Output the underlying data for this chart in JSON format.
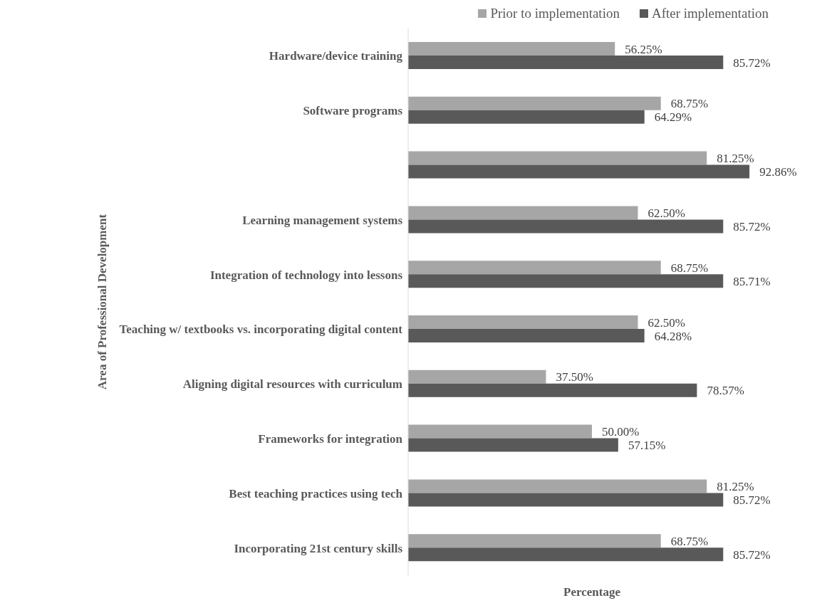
{
  "chart_data": {
    "type": "bar",
    "orientation": "horizontal",
    "xlabel": "Percentage",
    "ylabel": "Area of Professional Development",
    "categories": [
      "Hardware/device training",
      "Software programs",
      null,
      "Learning management systems",
      "Integration of technology into lessons",
      "Teaching w/ textbooks vs. incorporating digital content",
      "Aligning digital resources with curriculum",
      "Frameworks for integration",
      "Best teaching practices using tech",
      "Incorporating 21st century skills"
    ],
    "series": [
      {
        "name": "Prior to implementation",
        "color": "#a6a6a6",
        "values": [
          56.25,
          68.75,
          81.25,
          62.5,
          68.75,
          62.5,
          37.5,
          50,
          81.25,
          68.75
        ],
        "value_labels": [
          "56.25%",
          "68.75%",
          "81.25%",
          "62.50%",
          "68.75%",
          "62.50%",
          "37.50%",
          "50.00%",
          "81.25%",
          "68.75%"
        ]
      },
      {
        "name": "After implementation",
        "color": "#595959",
        "values": [
          85.72,
          64.29,
          92.86,
          85.72,
          85.71,
          64.28,
          78.57,
          57.15,
          85.72,
          85.72
        ],
        "value_labels": [
          "85.72%",
          "64.29%",
          "92.86%",
          "85.72%",
          "85.71%",
          "64.28%",
          "78.57%",
          "57.15%",
          "85.72%",
          "85.72%"
        ]
      }
    ],
    "legend": "top right",
    "grid": false
  }
}
